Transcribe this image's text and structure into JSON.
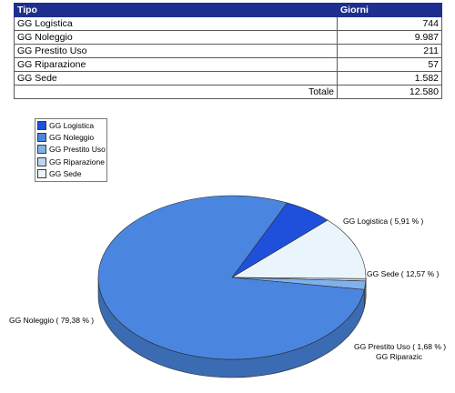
{
  "table": {
    "headers": [
      "Tipo",
      "Giorni"
    ],
    "rows": [
      {
        "tipo": "GG Logistica",
        "giorni": "744"
      },
      {
        "tipo": "GG Noleggio",
        "giorni": "9.987"
      },
      {
        "tipo": "GG Prestito Uso",
        "giorni": "211"
      },
      {
        "tipo": "GG Riparazione",
        "giorni": "57"
      },
      {
        "tipo": "GG Sede",
        "giorni": "1.582"
      }
    ],
    "total_label": "Totale",
    "total_value": "12.580"
  },
  "chart_data": {
    "type": "pie",
    "categories": [
      "GG Logistica",
      "GG Noleggio",
      "GG Prestito Uso",
      "GG Riparazione",
      "GG Sede"
    ],
    "values": [
      744,
      9987,
      211,
      57,
      1582
    ],
    "colors": [
      "#1f50dc",
      "#4a86e0",
      "#7fb1ec",
      "#bcd6f3",
      "#eaf4fb"
    ],
    "slice_labels": {
      "GG Logistica": "GG Logistica  ( 5,91 % )",
      "GG Noleggio": "GG Noleggio  ( 79,38 % )",
      "GG Prestito Uso": "GG Prestito Uso  ( 1,68 % )",
      "GG Riparazione": "GG Riparazic",
      "GG Sede": "GG Sede  ( 12,57 % )"
    },
    "legend_placement": "top-left",
    "grid": false
  }
}
